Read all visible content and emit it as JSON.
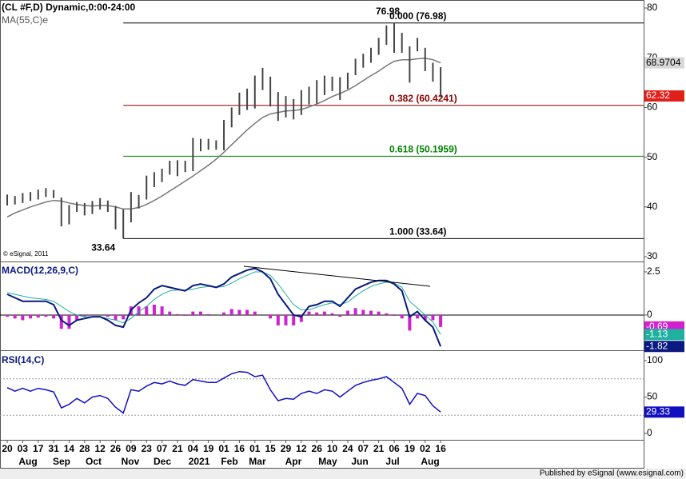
{
  "x_axis": {
    "x": [
      0,
      1,
      2,
      3,
      4,
      5,
      6,
      7,
      8,
      9,
      10,
      11,
      12,
      13,
      14,
      15,
      16,
      17,
      18,
      19,
      20,
      21,
      22,
      23,
      24,
      25,
      26,
      27,
      28,
      29,
      30,
      31,
      32,
      33,
      34,
      35,
      36,
      37,
      38,
      39,
      40,
      41,
      42,
      43,
      44,
      45,
      46,
      47,
      48,
      49,
      50,
      51,
      52,
      53,
      54,
      55,
      56
    ],
    "xlim": [
      -0.93,
      82.23
    ],
    "xticks": [
      {
        "value": 0,
        "label": "20"
      },
      {
        "value": 2,
        "label": "03"
      },
      {
        "value": 4,
        "label": "17"
      },
      {
        "value": 6,
        "label": "31"
      },
      {
        "value": 8,
        "label": "14"
      },
      {
        "value": 10,
        "label": "28"
      },
      {
        "value": 12,
        "label": "12"
      },
      {
        "value": 14,
        "label": "26"
      },
      {
        "value": 16,
        "label": "09"
      },
      {
        "value": 18,
        "label": "23"
      },
      {
        "value": 20,
        "label": "07"
      },
      {
        "value": 22,
        "label": "21"
      },
      {
        "value": 24,
        "label": "04"
      },
      {
        "value": 26,
        "label": "19"
      },
      {
        "value": 28,
        "label": "01"
      },
      {
        "value": 30,
        "label": "16"
      },
      {
        "value": 32,
        "label": "01"
      },
      {
        "value": 34,
        "label": "15"
      },
      {
        "value": 36,
        "label": "29"
      },
      {
        "value": 38,
        "label": "12"
      },
      {
        "value": 40,
        "label": "26"
      },
      {
        "value": 42,
        "label": "10"
      },
      {
        "value": 44,
        "label": "24"
      },
      {
        "value": 46,
        "label": "07"
      },
      {
        "value": 48,
        "label": "21"
      },
      {
        "value": 50,
        "label": "06"
      },
      {
        "value": 52,
        "label": "19"
      },
      {
        "value": 54,
        "label": "02"
      },
      {
        "value": 56,
        "label": "16"
      }
    ],
    "month_labels": [
      {
        "value": 2.69,
        "label": "Aug"
      },
      {
        "value": 7.02,
        "label": "Sep"
      },
      {
        "value": 11.16,
        "label": "Oct"
      },
      {
        "value": 15.9,
        "label": "Nov"
      },
      {
        "value": 20.04,
        "label": "Dec"
      },
      {
        "value": 24.8,
        "label": "2021"
      },
      {
        "value": 28.72,
        "label": "Feb"
      },
      {
        "value": 32.33,
        "label": "Mar"
      },
      {
        "value": 36.98,
        "label": "Apr"
      },
      {
        "value": 41.42,
        "label": "May"
      },
      {
        "value": 45.56,
        "label": "Jun"
      },
      {
        "value": 49.8,
        "label": "Jul"
      },
      {
        "value": 54.65,
        "label": "Aug"
      }
    ]
  },
  "chart_data": [
    {
      "type": "ohlc",
      "title": "(CL #F,D) Dynamic,0:00-24:00",
      "color": "#444444",
      "high": [
        42.5,
        42.2,
        42.8,
        43.0,
        43.5,
        43.8,
        43.4,
        41.9,
        40.4,
        41.0,
        40.8,
        41.2,
        41.8,
        41.3,
        40.2,
        39.5,
        43.0,
        42.4,
        46.3,
        47.0,
        47.7,
        49.3,
        49.4,
        49.3,
        53.9,
        53.7,
        53.7,
        53.4,
        57.5,
        60.0,
        63.0,
        63.8,
        66.4,
        67.98,
        66.2,
        63.1,
        62.3,
        61.7,
        63.5,
        64.2,
        65.5,
        66.4,
        66.2,
        66.1,
        67.0,
        69.8,
        70.8,
        72.0,
        74.0,
        76.5,
        76.98,
        75.0,
        72.3,
        74.0,
        72.0,
        69.0,
        68.1
      ],
      "low": [
        40.3,
        40.5,
        40.8,
        41.2,
        41.5,
        42.0,
        41.8,
        36.1,
        36.5,
        39.0,
        38.3,
        38.6,
        39.5,
        39.0,
        35.5,
        33.64,
        36.9,
        39.7,
        41.5,
        44.0,
        45.0,
        46.5,
        46.2,
        47.0,
        47.2,
        51.2,
        51.5,
        51.5,
        51.4,
        56.0,
        58.5,
        59.5,
        59.8,
        63.5,
        60.2,
        57.3,
        58.0,
        57.6,
        58.5,
        60.6,
        60.8,
        62.5,
        63.3,
        61.5,
        63.7,
        66.5,
        68.0,
        69.0,
        70.6,
        72.6,
        71.0,
        71.0,
        65.0,
        71.3,
        67.3,
        65.2,
        62.1
      ],
      "last": 62.32,
      "last_color": "#e0201b",
      "series": [
        {
          "name": "MA(55,C)e",
          "color": "#777777",
          "values": [
            38.0,
            38.8,
            39.4,
            40.0,
            40.5,
            41.0,
            41.3,
            41.2,
            40.8,
            40.5,
            40.3,
            40.2,
            40.3,
            40.3,
            40.0,
            39.6,
            39.6,
            39.9,
            40.5,
            41.3,
            42.2,
            43.2,
            44.2,
            45.2,
            46.2,
            47.3,
            48.4,
            49.6,
            51.0,
            52.5,
            54.0,
            55.5,
            56.8,
            58.0,
            58.7,
            59.0,
            59.3,
            59.4,
            59.6,
            60.1,
            60.7,
            61.4,
            62.2,
            62.8,
            63.5,
            64.4,
            65.4,
            66.4,
            67.3,
            68.4,
            69.3,
            69.6,
            69.6,
            69.8,
            69.9,
            69.6,
            68.9704
          ]
        }
      ],
      "fib": {
        "from_x": 15,
        "levels": [
          {
            "value": 76.98,
            "label": "0.000 (76.98)",
            "color": "#000000"
          },
          {
            "value": 60.4241,
            "label": "0.382 (60.4241)",
            "color": "#8b0000"
          },
          {
            "value": 50.1959,
            "label": "0.618 (50.1959)",
            "color": "#008000"
          },
          {
            "value": 33.64,
            "label": "1.000 (33.64)",
            "color": "#000000"
          }
        ]
      },
      "annotations": [
        {
          "value": 76.98,
          "x": 50
        },
        {
          "value": 33.64,
          "x": 15
        }
      ],
      "copyright": "© eSignal, 2011",
      "ylim": [
        29.04,
        81.61
      ],
      "yticks": [
        30,
        40,
        50,
        60,
        70,
        80
      ]
    },
    {
      "type": "macd",
      "title": "MACD(12,26,9,C)",
      "series": [
        {
          "kind": "histogram",
          "color": "#d020d0",
          "values": [
            -0.1,
            -0.2,
            -0.3,
            -0.2,
            -0.15,
            -0.1,
            -0.2,
            -0.8,
            -0.8,
            -0.3,
            -0.1,
            0,
            0,
            -0.1,
            -0.3,
            -0.25,
            0.5,
            0.5,
            0.5,
            0.6,
            0.5,
            0.2,
            0.05,
            -0.05,
            0.2,
            0.2,
            0.05,
            0,
            0.15,
            0.35,
            0.3,
            0.3,
            0.2,
            0,
            -0.2,
            -0.6,
            -0.6,
            -0.6,
            -0.4,
            0.2,
            0.15,
            0.2,
            0.1,
            -0.1,
            0.25,
            0.4,
            0.3,
            0.25,
            0.2,
            0.1,
            -0.05,
            -0.2,
            -0.9,
            -0.2,
            -0.3,
            -0.3,
            -0.69
          ]
        },
        {
          "kind": "line",
          "color": "#20b0a0",
          "width": 1,
          "values": [
            1.3,
            1.2,
            1.1,
            1.0,
            0.95,
            0.9,
            0.8,
            0.5,
            0.2,
            0.0,
            -0.1,
            -0.1,
            -0.1,
            -0.2,
            -0.3,
            -0.45,
            -0.2,
            0.2,
            0.5,
            0.9,
            1.2,
            1.4,
            1.45,
            1.45,
            1.5,
            1.6,
            1.65,
            1.6,
            1.65,
            1.85,
            2.1,
            2.3,
            2.5,
            2.5,
            2.3,
            1.8,
            1.2,
            0.6,
            0.3,
            0.3,
            0.45,
            0.6,
            0.7,
            0.6,
            0.75,
            1.1,
            1.4,
            1.65,
            1.8,
            1.9,
            1.85,
            1.6,
            0.8,
            0.4,
            0.0,
            -0.4,
            -1.13
          ]
        },
        {
          "kind": "line",
          "color": "#0a1a80",
          "width": 2,
          "values": [
            1.2,
            1.0,
            0.8,
            0.8,
            0.8,
            0.8,
            0.6,
            -0.3,
            -0.6,
            -0.3,
            -0.2,
            -0.1,
            -0.1,
            -0.3,
            -0.6,
            -0.7,
            0.3,
            0.7,
            1.0,
            1.5,
            1.7,
            1.6,
            1.5,
            1.4,
            1.7,
            1.8,
            1.7,
            1.6,
            1.8,
            2.2,
            2.4,
            2.6,
            2.7,
            2.5,
            2.1,
            1.2,
            0.6,
            0.0,
            -0.1,
            0.5,
            0.6,
            0.8,
            0.8,
            0.5,
            1.0,
            1.5,
            1.7,
            1.9,
            2.0,
            2.0,
            1.8,
            1.4,
            -0.1,
            0.2,
            -0.3,
            -0.7,
            -1.82
          ]
        }
      ],
      "guides": [
        0
      ],
      "ylim": [
        -2.04,
        3.1
      ],
      "yticks": [
        0,
        2.5
      ]
    },
    {
      "type": "line",
      "title": "RSI(14,C)",
      "series": [
        {
          "color": "#1010c0",
          "width": 1.5,
          "values": [
            63,
            58,
            62,
            58,
            62,
            60,
            57,
            35,
            40,
            48,
            42,
            50,
            52,
            48,
            36,
            28,
            60,
            58,
            65,
            70,
            68,
            72,
            68,
            66,
            74,
            72,
            70,
            70,
            76,
            82,
            85,
            84,
            78,
            80,
            60,
            45,
            48,
            47,
            55,
            58,
            55,
            60,
            58,
            50,
            58,
            66,
            70,
            73,
            75,
            78,
            70,
            62,
            40,
            55,
            52,
            38,
            29.33
          ]
        }
      ],
      "guides": [
        25,
        75
      ],
      "ylim": [
        -8.8,
        114.3
      ],
      "yticks": [
        0,
        50,
        100
      ]
    }
  ],
  "footer": "Published by eSignal (www.esignal.com)"
}
